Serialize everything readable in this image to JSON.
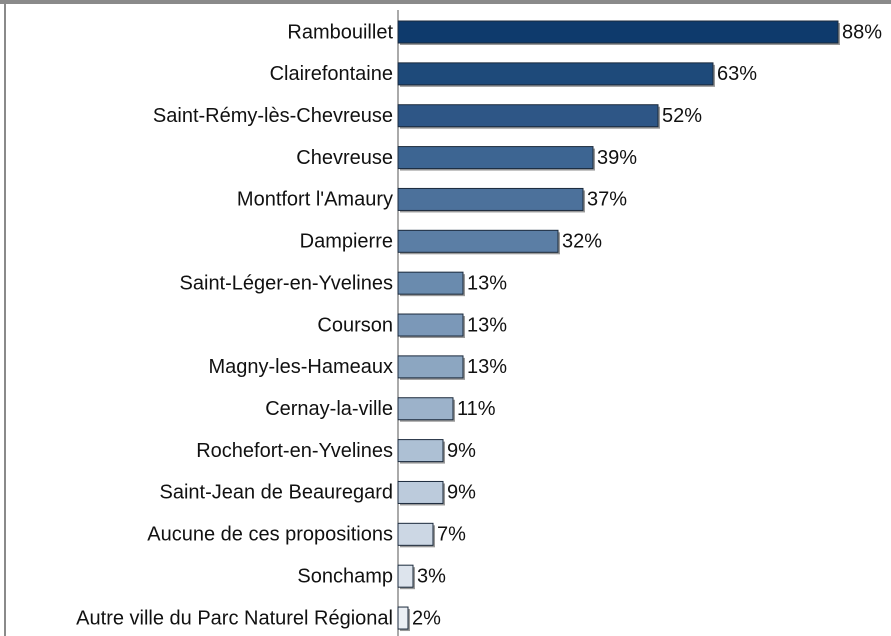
{
  "chart_data": {
    "type": "hbar",
    "categories": [
      "Rambouillet",
      "Clairefontaine",
      "Saint-Rémy-lès-Chevreuse",
      "Chevreuse",
      "Montfort l'Amaury",
      "Dampierre",
      "Saint-Léger-en-Yvelines",
      "Courson",
      "Magny-les-Hameaux",
      "Cernay-la-ville",
      "Rochefort-en-Yvelines",
      "Saint-Jean de Beauregard",
      "Aucune de ces propositions",
      "Sonchamp",
      "Autre ville du Parc Naturel Régional"
    ],
    "values": [
      88,
      63,
      52,
      39,
      37,
      32,
      13,
      13,
      13,
      11,
      9,
      9,
      7,
      3,
      2
    ],
    "value_labels": [
      "88%",
      "63%",
      "52%",
      "39%",
      "37%",
      "32%",
      "13%",
      "13%",
      "13%",
      "11%",
      "9%",
      "9%",
      "7%",
      "3%",
      "2%"
    ],
    "colors": [
      "#0e3a6c",
      "#1e4a7a",
      "#2e5686",
      "#3d6592",
      "#4c719b",
      "#5b7ea5",
      "#6a8bae",
      "#7b98b8",
      "#8ca6c1",
      "#9cb2ca",
      "#adc0d4",
      "#bccbdc",
      "#ccd7e4",
      "#dde4ed",
      "#ebeff4"
    ],
    "xlim": [
      0,
      88
    ]
  }
}
